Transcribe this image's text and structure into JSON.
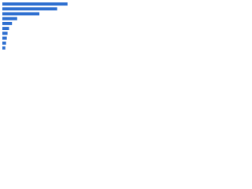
{
  "chart_data": {
    "type": "bar",
    "orientation": "horizontal",
    "categories": [
      null,
      null,
      null,
      null,
      null,
      null,
      null,
      null,
      null,
      null
    ],
    "values": [
      88,
      74,
      50,
      20,
      13,
      9,
      7,
      6,
      5,
      4
    ],
    "color": "#2e6fd0",
    "xlim": [
      0,
      100
    ]
  }
}
